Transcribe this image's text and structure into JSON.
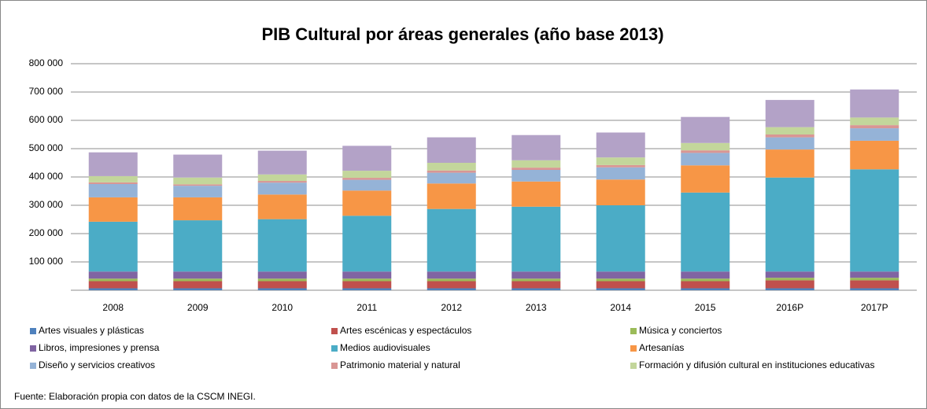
{
  "chart_data": {
    "type": "stacked_bar",
    "title": "PIB Cultural por áreas generales (año base 2013)",
    "note": "Fuente: Elaboración propia  con datos de  la CSCM INEGI.",
    "categories": [
      "2008",
      "2009",
      "2010",
      "2011",
      "2012",
      "2013",
      "2014",
      "2015",
      "2016P",
      "2017P"
    ],
    "ylim": [
      0,
      800000
    ],
    "yticks": [
      {
        "value": 100000,
        "label": "100 000"
      },
      {
        "value": 200000,
        "label": "200 000"
      },
      {
        "value": 300000,
        "label": "300 000"
      },
      {
        "value": 400000,
        "label": "400 000"
      },
      {
        "value": 500000,
        "label": "500 000"
      },
      {
        "value": 600000,
        "label": "600 000"
      },
      {
        "value": 700000,
        "label": "700 000"
      },
      {
        "value": 800000,
        "label": "800 000"
      }
    ],
    "grid": true,
    "series": [
      {
        "name": "Artes visuales y plásticas",
        "color": "#4f81bd",
        "values": [
          7000,
          7000,
          7000,
          7000,
          7000,
          7000,
          7000,
          7000,
          7000,
          7000
        ]
      },
      {
        "name": "Artes escénicas y espectáculos",
        "color": "#c0504d",
        "values": [
          25000,
          25000,
          25000,
          25000,
          25000,
          25000,
          25000,
          25000,
          28000,
          28000
        ]
      },
      {
        "name": "Música y conciertos",
        "color": "#9bbb59",
        "values": [
          9000,
          9000,
          9000,
          9000,
          9000,
          9000,
          9000,
          9000,
          9000,
          9000
        ]
      },
      {
        "name": "Libros, impresiones y prensa",
        "color": "#8064a2",
        "values": [
          25000,
          25000,
          25000,
          25000,
          25000,
          25000,
          25000,
          25000,
          22000,
          22000
        ]
      },
      {
        "name": "Medios audiovisuales",
        "color": "#4bacc6",
        "values": [
          176000,
          181000,
          185000,
          197000,
          221000,
          229000,
          234000,
          279000,
          332000,
          361000
        ]
      },
      {
        "name": "Artesanías",
        "color": "#f79646",
        "values": [
          86000,
          81000,
          87000,
          89000,
          90000,
          89000,
          91000,
          96000,
          99000,
          101000
        ]
      },
      {
        "name": "Diseño y servicios creativos",
        "color": "#95b3d7",
        "values": [
          47000,
          41000,
          42000,
          38000,
          38000,
          41000,
          43000,
          44000,
          43000,
          44000
        ]
      },
      {
        "name": "Patrimonio material y natural",
        "color": "#d99694",
        "values": [
          6000,
          5000,
          6000,
          7000,
          8000,
          8000,
          8000,
          9000,
          10000,
          11000
        ]
      },
      {
        "name": "Formación y difusión cultural en instituciones educativas",
        "color": "#c3d69b",
        "values": [
          22000,
          24000,
          23000,
          25000,
          27000,
          26000,
          27000,
          26000,
          26000,
          27000
        ]
      },
      {
        "color": "#b3a2c7",
        "values": [
          84000,
          81000,
          84000,
          88000,
          90000,
          89000,
          88000,
          92000,
          96000,
          99000
        ]
      }
    ]
  }
}
